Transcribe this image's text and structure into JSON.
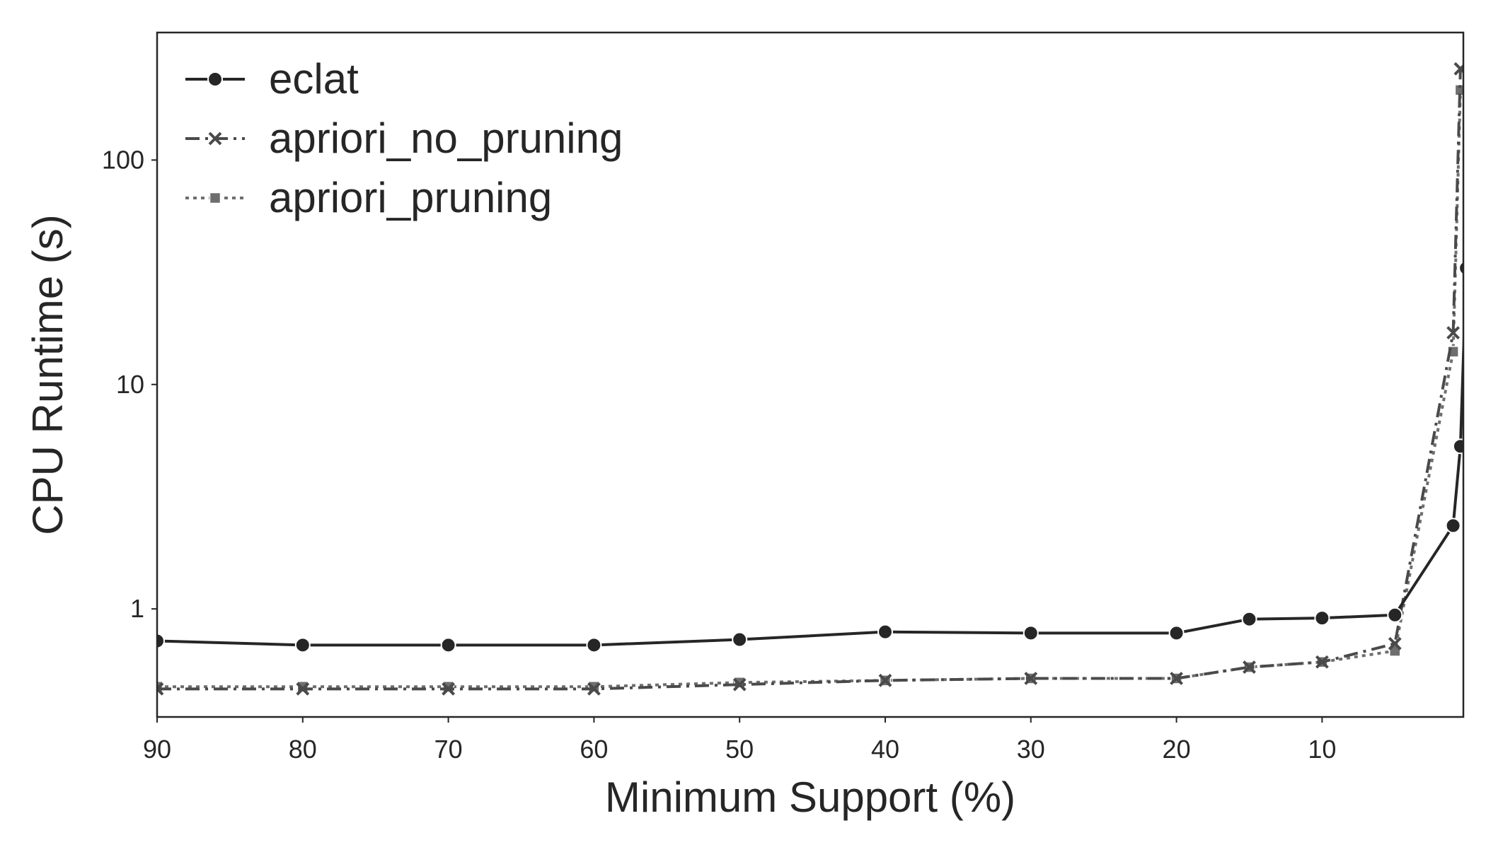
{
  "chart_data": {
    "type": "line",
    "title": "",
    "xlabel": "Minimum Support (%)",
    "ylabel": "CPU Runtime (s)",
    "xscale": "linear",
    "x_inverted": true,
    "xlim": [
      90,
      0.3
    ],
    "yscale": "log",
    "ylim": [
      0.33,
      370
    ],
    "x_ticks": [
      90,
      80,
      70,
      60,
      50,
      40,
      30,
      20,
      10
    ],
    "y_ticks": [
      1,
      10,
      100
    ],
    "grid": false,
    "legend_position": "top-left",
    "series": [
      {
        "name": "eclat",
        "marker": "circle",
        "line_style": "solid",
        "color": "#262626",
        "x": [
          90,
          80,
          70,
          60,
          50,
          40,
          30,
          20,
          15,
          10,
          5,
          1,
          0.5,
          0.1
        ],
        "y": [
          0.72,
          0.69,
          0.69,
          0.69,
          0.73,
          0.79,
          0.78,
          0.78,
          0.9,
          0.91,
          0.94,
          2.35,
          5.3,
          33
        ]
      },
      {
        "name": "apriori_no_pruning",
        "marker": "x",
        "line_style": "dashdot",
        "color": "#4a4a4a",
        "x": [
          90,
          80,
          70,
          60,
          50,
          40,
          30,
          20,
          15,
          10,
          5,
          1,
          0.5
        ],
        "y": [
          0.44,
          0.44,
          0.44,
          0.44,
          0.46,
          0.48,
          0.49,
          0.49,
          0.55,
          0.58,
          0.7,
          17,
          255
        ]
      },
      {
        "name": "apriori_pruning",
        "marker": "square",
        "line_style": "dotted",
        "color": "#6e6e6e",
        "x": [
          90,
          80,
          70,
          60,
          50,
          40,
          30,
          20,
          15,
          10,
          5,
          1,
          0.5
        ],
        "y": [
          0.45,
          0.45,
          0.45,
          0.45,
          0.47,
          0.48,
          0.49,
          0.49,
          0.55,
          0.58,
          0.65,
          14,
          205
        ]
      }
    ]
  }
}
